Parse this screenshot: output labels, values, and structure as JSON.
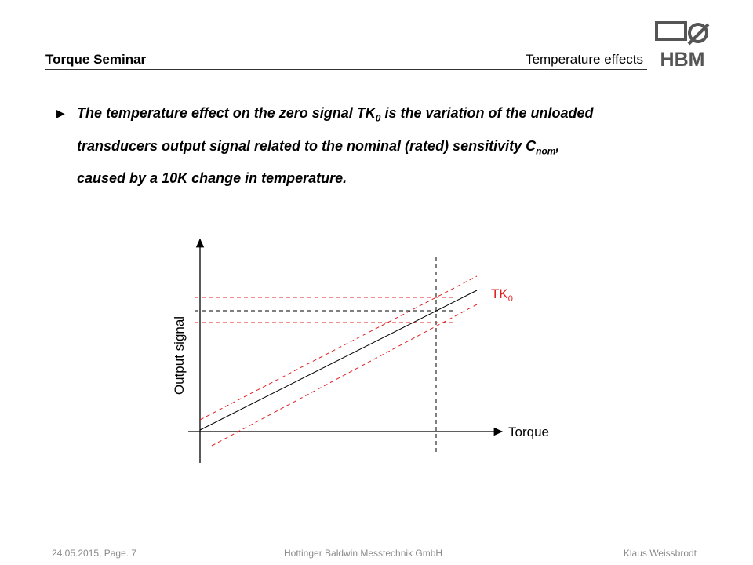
{
  "header": {
    "title": "Torque Seminar",
    "section": "Temperature effects",
    "logo": "HBM"
  },
  "bullet": {
    "line1": {
      "text": "The temperature effect on the zero signal TK",
      "sub": "0",
      "rest": " is the variation of the unloaded"
    },
    "line2": {
      "text": "transducers output signal related to the nominal (rated) sensitivity C",
      "sub": "nom",
      "rest": ","
    },
    "line3": {
      "text": "caused by a 10K change in temperature."
    }
  },
  "diagram": {
    "curve_label": {
      "text": "TK",
      "sub": "0"
    },
    "x_label": "Torque",
    "y_label": "Output signal"
  },
  "footer": {
    "date_page": "24.05.2015, Page. 7",
    "company": "Hottinger Baldwin Messtechnik GmbH",
    "author": "Klaus Weissbrodt"
  }
}
